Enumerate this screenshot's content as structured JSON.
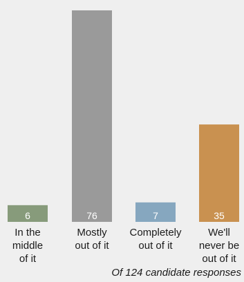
{
  "chart_data": {
    "type": "bar",
    "categories": [
      [
        "In the",
        "middle",
        "of it"
      ],
      [
        "Mostly",
        "out of it"
      ],
      [
        "Completely",
        "out of it"
      ],
      [
        "We'll",
        "never be",
        "out of it"
      ]
    ],
    "values": [
      6,
      76,
      7,
      35
    ],
    "value_labels": [
      "6",
      "76",
      "7",
      "35"
    ],
    "colors": [
      "#879b7b",
      "#9a9a9a",
      "#86a7bf",
      "#c99150"
    ],
    "ylim": [
      0,
      76
    ],
    "grid": false,
    "title": "",
    "xlabel": "",
    "ylabel": ""
  },
  "footnote": "Of 124 candidate responses"
}
